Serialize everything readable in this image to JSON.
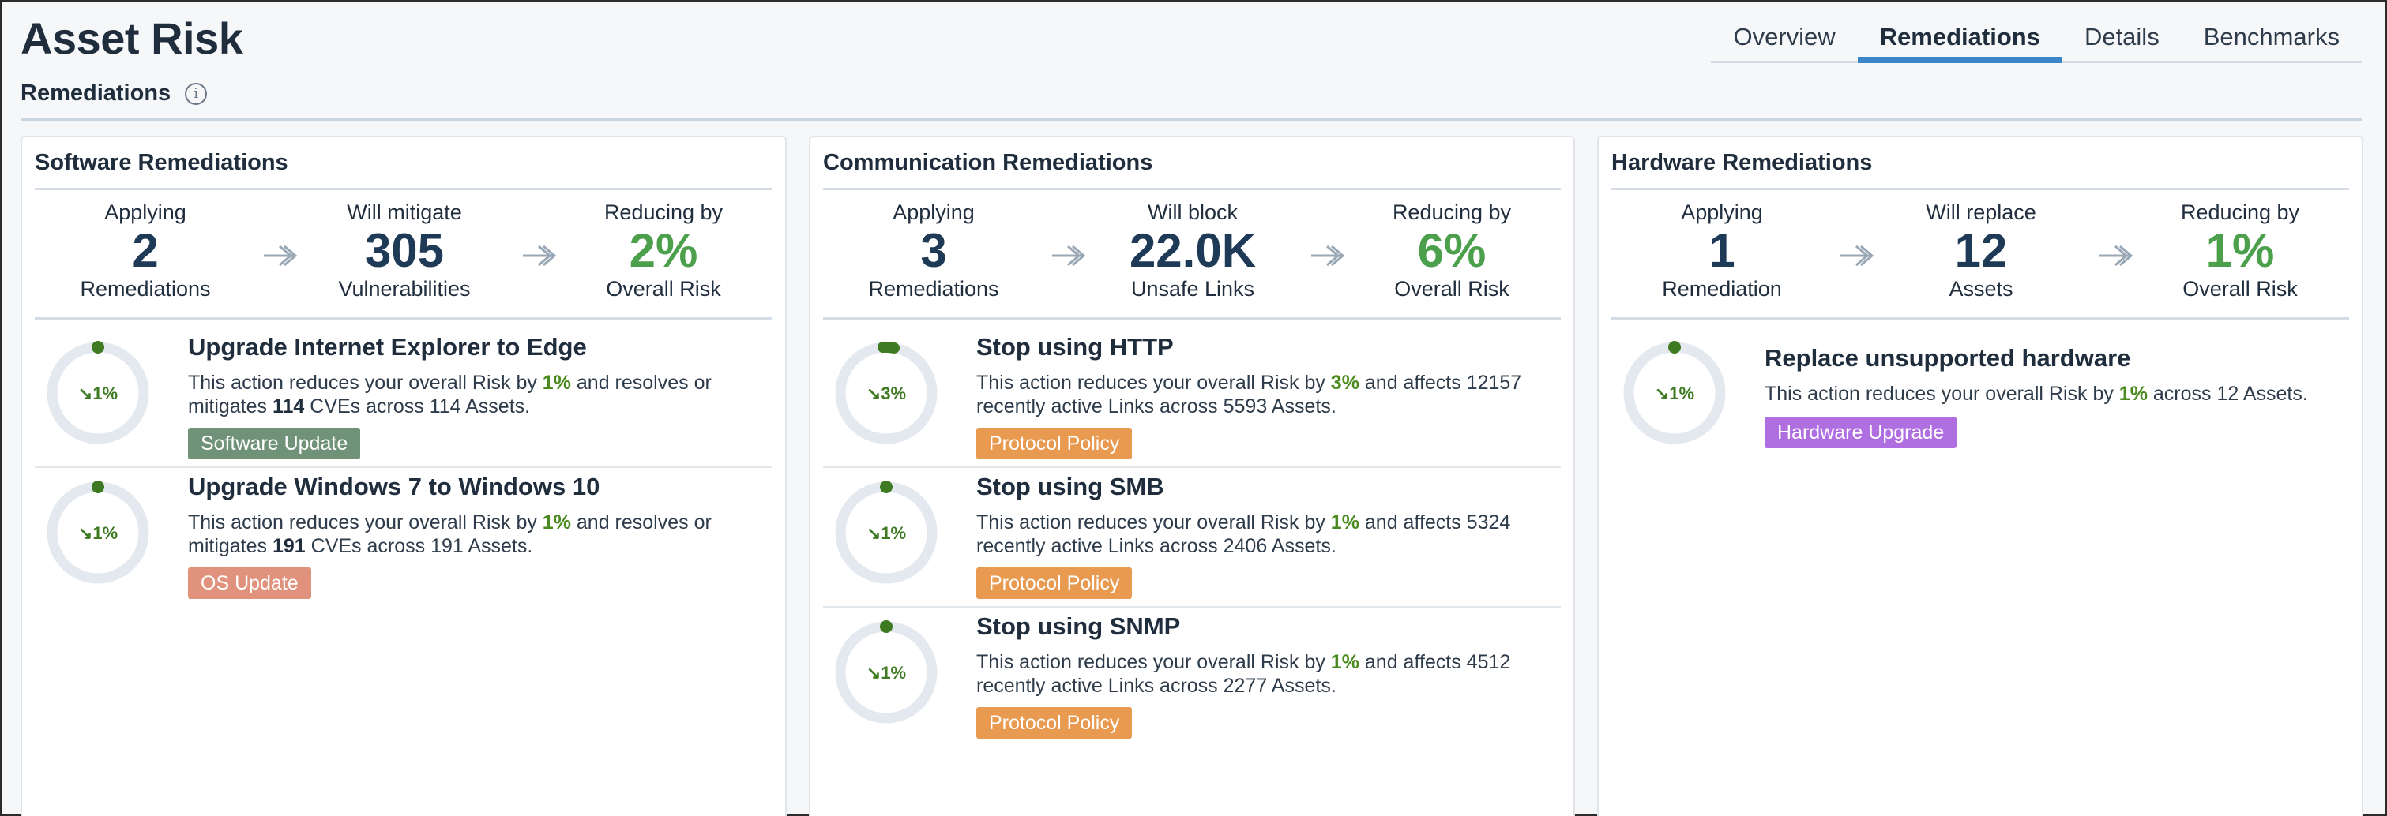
{
  "header": {
    "title": "Asset Risk"
  },
  "tabs": [
    {
      "label": "Overview",
      "active": false
    },
    {
      "label": "Remediations",
      "active": true
    },
    {
      "label": "Details",
      "active": false
    },
    {
      "label": "Benchmarks",
      "active": false
    }
  ],
  "section": {
    "title": "Remediations",
    "info_icon": "info-icon"
  },
  "colors": {
    "accent": "#3a86c8",
    "green": "#4ca04c",
    "navy": "#1f3a56",
    "software_tag": "#6f9278",
    "os_tag": "#e0927c",
    "protocol_tag": "#e79a50",
    "hardware_tag": "#b06fe0"
  },
  "panels": [
    {
      "title": "Software Remediations",
      "stats": [
        {
          "label": "Applying",
          "value": "2",
          "unit": "Remediations"
        },
        {
          "label": "Will mitigate",
          "value": "305",
          "unit": "Vulnerabilities"
        },
        {
          "label": "Reducing by",
          "value": "2%",
          "unit": "Overall Risk"
        }
      ],
      "items": [
        {
          "title": "Upgrade Internet Explorer to Edge",
          "pct": "1%",
          "d1": "This action reduces your overall Risk by ",
          "d_risk": "1%",
          "d2": " and resolves or mitigates ",
          "d_count": "114",
          "d3": " CVEs across 114 Assets.",
          "tag": "Software Update"
        },
        {
          "title": "Upgrade Windows 7 to Windows 10",
          "pct": "1%",
          "d1": "This action reduces your overall Risk by ",
          "d_risk": "1%",
          "d2": " and resolves or mitigates ",
          "d_count": "191",
          "d3": " CVEs across 191 Assets.",
          "tag": "OS Update"
        }
      ]
    },
    {
      "title": "Communication Remediations",
      "stats": [
        {
          "label": "Applying",
          "value": "3",
          "unit": "Remediations"
        },
        {
          "label": "Will block",
          "value": "22.0K",
          "unit": "Unsafe Links"
        },
        {
          "label": "Reducing by",
          "value": "6%",
          "unit": "Overall Risk"
        }
      ],
      "items": [
        {
          "title": "Stop using HTTP",
          "pct": "3%",
          "d1": "This action reduces your overall Risk by ",
          "d_risk": "3%",
          "d2": " and affects 12157 recently active Links across 5593 Assets.",
          "tag": "Protocol Policy"
        },
        {
          "title": "Stop using SMB",
          "pct": "1%",
          "d1": "This action reduces your overall Risk by ",
          "d_risk": "1%",
          "d2": " and affects 5324 recently active Links across 2406 Assets.",
          "tag": "Protocol Policy"
        },
        {
          "title": "Stop using SNMP",
          "pct": "1%",
          "d1": "This action reduces your overall Risk by ",
          "d_risk": "1%",
          "d2": " and affects 4512 recently active Links across 2277 Assets.",
          "tag": "Protocol Policy"
        }
      ]
    },
    {
      "title": "Hardware Remediations",
      "stats": [
        {
          "label": "Applying",
          "value": "1",
          "unit": "Remediation"
        },
        {
          "label": "Will replace",
          "value": "12",
          "unit": "Assets"
        },
        {
          "label": "Reducing by",
          "value": "1%",
          "unit": "Overall Risk"
        }
      ],
      "items": [
        {
          "title": "Replace unsupported hardware",
          "pct": "1%",
          "d1": "This action reduces your overall Risk by ",
          "d_risk": "1%",
          "d2": " across 12 Assets.",
          "tag": "Hardware Upgrade"
        }
      ]
    }
  ]
}
